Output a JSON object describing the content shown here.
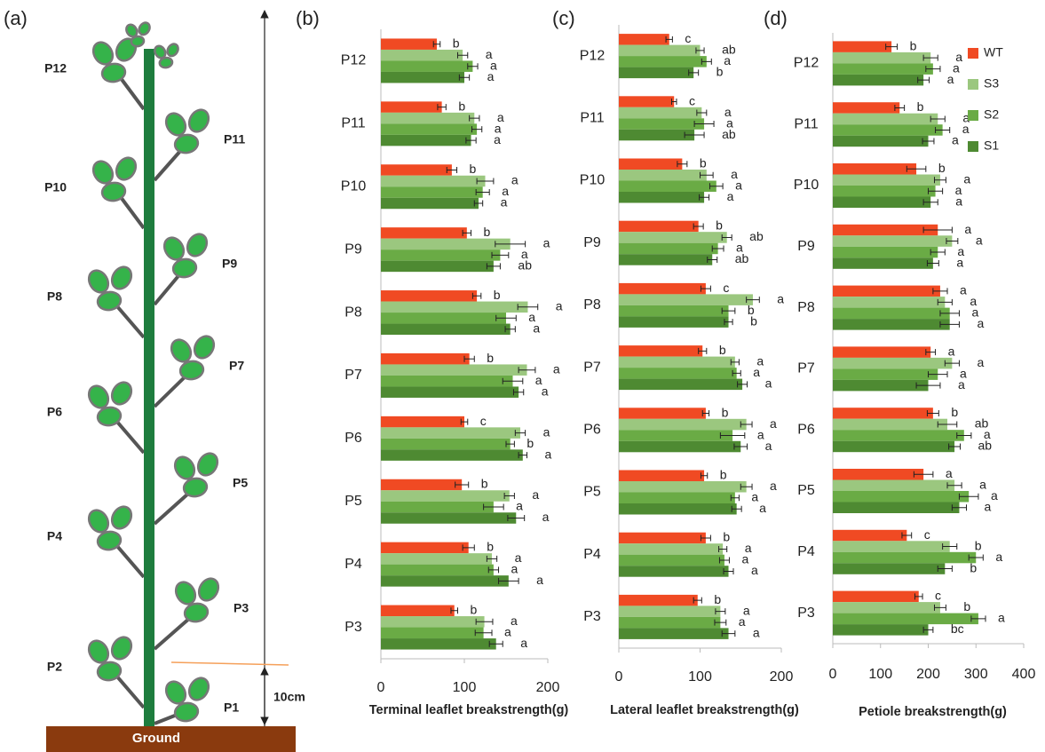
{
  "diagram": {
    "label": "(a)",
    "leaves": [
      "P1",
      "P2",
      "P3",
      "P4",
      "P5",
      "P6",
      "P7",
      "P8",
      "P9",
      "P10",
      "P11",
      "P12"
    ],
    "height": "10cm",
    "ground": "Ground"
  },
  "chart_data": [
    {
      "type": "bar",
      "orientation": "horizontal",
      "panel": "(b)",
      "xlabel": "Terminal leaflet breakstrength(g)",
      "categories": [
        "P12",
        "P11",
        "P10",
        "P9",
        "P8",
        "P7",
        "P6",
        "P5",
        "P4",
        "P3"
      ],
      "xlim": [
        0,
        200
      ],
      "xticks": [
        0,
        100,
        200
      ],
      "series": [
        {
          "color": "#f04a23",
          "values": [
            67,
            73,
            85,
            103,
            115,
            106,
            100,
            97,
            105,
            88
          ],
          "errors": [
            4,
            5,
            6,
            5,
            5,
            6,
            4,
            8,
            7,
            4
          ],
          "labels": [
            "b",
            "b",
            "b",
            "b",
            "b",
            "b",
            "c",
            "b",
            "b",
            "b"
          ]
        },
        {
          "color": "#9bc77f",
          "values": [
            98,
            112,
            125,
            155,
            176,
            175,
            167,
            154,
            133,
            124
          ],
          "errors": [
            6,
            6,
            10,
            18,
            12,
            10,
            6,
            6,
            6,
            10
          ],
          "labels": [
            "a",
            "a",
            "a",
            "a",
            "a",
            "a",
            "a",
            "a",
            "a",
            "a"
          ]
        },
        {
          "color": "#6aab45",
          "values": [
            110,
            115,
            122,
            143,
            150,
            158,
            155,
            135,
            135,
            123
          ],
          "errors": [
            6,
            6,
            8,
            10,
            12,
            12,
            5,
            12,
            6,
            10
          ],
          "labels": [
            "a",
            "a",
            "a",
            "a",
            "a",
            "a",
            "b",
            "a",
            "a",
            "a"
          ]
        },
        {
          "color": "#4e8a32",
          "values": [
            100,
            108,
            117,
            135,
            155,
            165,
            170,
            162,
            153,
            138
          ],
          "errors": [
            6,
            6,
            5,
            8,
            6,
            6,
            5,
            10,
            12,
            8
          ],
          "labels": [
            "a",
            "a",
            "a",
            "ab",
            "a",
            "a",
            "a",
            "a",
            "a",
            "a"
          ]
        }
      ]
    },
    {
      "type": "bar",
      "orientation": "horizontal",
      "panel": "(c)",
      "xlabel": "Lateral leaflet breakstrength(g)",
      "categories": [
        "P12",
        "P11",
        "P10",
        "P9",
        "P8",
        "P7",
        "P6",
        "P5",
        "P4",
        "P3"
      ],
      "xlim": [
        0,
        200
      ],
      "xticks": [
        0,
        100,
        200
      ],
      "series": [
        {
          "color": "#f04a23",
          "values": [
            62,
            68,
            78,
            98,
            107,
            103,
            107,
            105,
            107,
            97
          ],
          "errors": [
            4,
            3,
            6,
            6,
            6,
            5,
            4,
            4,
            6,
            5
          ],
          "labels": [
            "c",
            "c",
            "b",
            "b",
            "c",
            "b",
            "b",
            "b",
            "b",
            "b"
          ]
        },
        {
          "color": "#9bc77f",
          "values": [
            100,
            102,
            108,
            133,
            165,
            143,
            157,
            157,
            128,
            125
          ],
          "errors": [
            5,
            6,
            8,
            6,
            8,
            5,
            7,
            7,
            5,
            6
          ],
          "labels": [
            "ab",
            "a",
            "a",
            "ab",
            "a",
            "a",
            "a",
            "a",
            "a",
            "a"
          ]
        },
        {
          "color": "#6aab45",
          "values": [
            108,
            105,
            120,
            122,
            135,
            145,
            140,
            143,
            130,
            125
          ],
          "errors": [
            6,
            12,
            8,
            7,
            8,
            5,
            15,
            5,
            6,
            7
          ],
          "labels": [
            "a",
            "a",
            "a",
            "a",
            "b",
            "a",
            "a",
            "a",
            "a",
            "a"
          ]
        },
        {
          "color": "#4e8a32",
          "values": [
            92,
            93,
            105,
            115,
            135,
            152,
            150,
            145,
            135,
            135
          ],
          "errors": [
            6,
            12,
            6,
            6,
            5,
            6,
            8,
            6,
            6,
            8
          ],
          "labels": [
            "b",
            "ab",
            "a",
            "ab",
            "b",
            "a",
            "a",
            "a",
            "a",
            "a"
          ]
        }
      ]
    },
    {
      "type": "bar",
      "orientation": "horizontal",
      "panel": "(d)",
      "xlabel": "Petiole breakstrength(g)",
      "categories": [
        "P12",
        "P11",
        "P10",
        "P9",
        "P8",
        "P7",
        "P6",
        "P5",
        "P4",
        "P3"
      ],
      "xlim": [
        0,
        400
      ],
      "xticks": [
        0,
        100,
        200,
        300,
        400
      ],
      "legend": "right",
      "series": [
        {
          "name": "WT",
          "color": "#f04a23",
          "values": [
            123,
            140,
            175,
            220,
            225,
            205,
            210,
            190,
            155,
            180
          ],
          "errors": [
            12,
            10,
            20,
            30,
            15,
            10,
            12,
            20,
            10,
            8
          ],
          "labels": [
            "b",
            "b",
            "b",
            "a",
            "a",
            "a",
            "b",
            "a",
            "c",
            "c"
          ]
        },
        {
          "name": "S3",
          "color": "#9bc77f",
          "values": [
            205,
            220,
            225,
            250,
            235,
            250,
            240,
            255,
            245,
            225
          ],
          "errors": [
            15,
            15,
            12,
            12,
            15,
            15,
            20,
            15,
            15,
            12
          ],
          "labels": [
            "a",
            "a",
            "a",
            "a",
            "a",
            "a",
            "ab",
            "a",
            "b",
            "b"
          ]
        },
        {
          "name": "S2",
          "color": "#6aab45",
          "values": [
            210,
            230,
            215,
            220,
            245,
            220,
            275,
            285,
            300,
            305
          ],
          "errors": [
            15,
            15,
            15,
            15,
            20,
            20,
            15,
            20,
            15,
            15
          ],
          "labels": [
            "a",
            "a",
            "a",
            "a",
            "a",
            "a",
            "a",
            "a",
            "a",
            "a"
          ]
        },
        {
          "name": "S1",
          "color": "#4e8a32",
          "values": [
            190,
            200,
            205,
            210,
            245,
            200,
            255,
            265,
            235,
            200
          ],
          "errors": [
            12,
            12,
            15,
            12,
            20,
            25,
            12,
            15,
            15,
            10
          ],
          "labels": [
            "a",
            "a",
            "a",
            "a",
            "a",
            "a",
            "ab",
            "a",
            "b",
            "bc"
          ]
        }
      ]
    }
  ]
}
